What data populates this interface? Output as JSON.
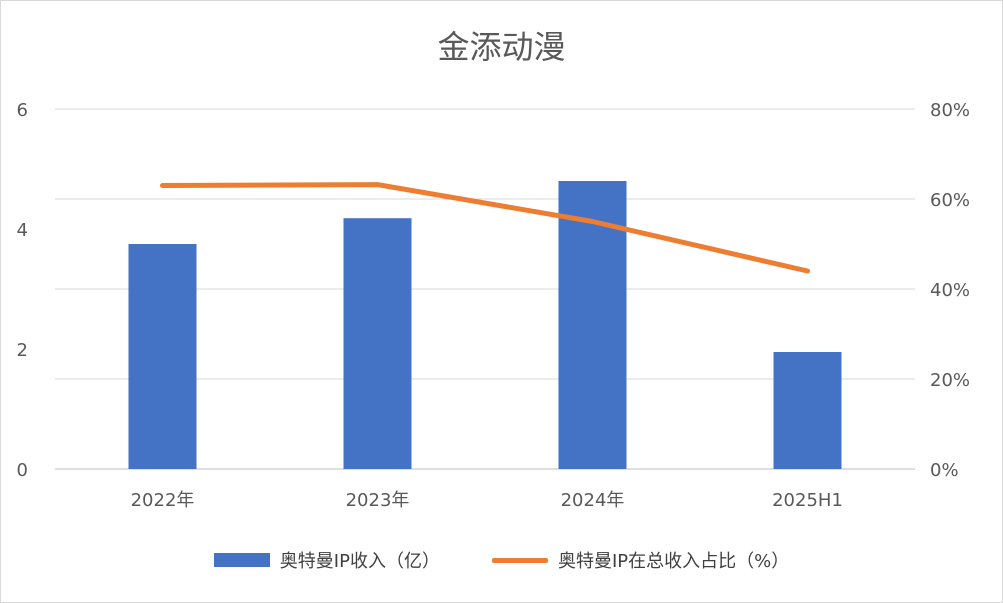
{
  "chart_data": {
    "type": "bar",
    "title": "金添动漫",
    "categories": [
      "2022年",
      "2023年",
      "2024年",
      "2025H1"
    ],
    "series": [
      {
        "name": "奥特曼IP收入（亿）",
        "type": "bar",
        "axis": "left",
        "color": "#4472C4",
        "values": [
          3.75,
          4.18,
          4.8,
          1.95
        ]
      },
      {
        "name": "奥特曼IP在总收入占比（%）",
        "type": "line",
        "axis": "right",
        "color": "#ED7D31",
        "values": [
          63,
          63.2,
          55,
          44
        ]
      }
    ],
    "y_left": {
      "ylim": [
        0,
        6
      ],
      "ticks": [
        0,
        2,
        4,
        6
      ],
      "tick_labels": [
        "0",
        "2",
        "4",
        "6"
      ]
    },
    "y_right": {
      "ylim": [
        0,
        80
      ],
      "ticks": [
        0,
        20,
        40,
        60,
        80
      ],
      "tick_labels": [
        "0%",
        "20%",
        "40%",
        "60%",
        "80%"
      ]
    },
    "grid": true,
    "legend": "bottom"
  }
}
